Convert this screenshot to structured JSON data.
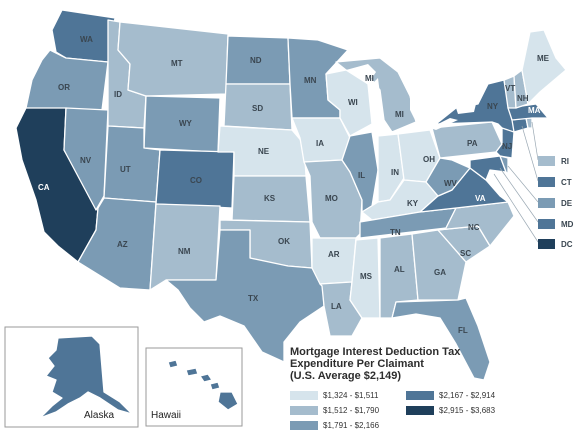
{
  "map": {
    "title_lines": [
      "Mortgage Interest Deduction Tax",
      "Expenditure Per Claimant",
      "(U.S. Average $2,149)"
    ],
    "classes": [
      {
        "range": "$1,324 - $1,511",
        "color": "#d6e4ec"
      },
      {
        "range": "$1,512 - $1,790",
        "color": "#a5bccd"
      },
      {
        "range": "$1,791 - $2,166",
        "color": "#7b9bb4"
      },
      {
        "range": "$2,167 - $2,914",
        "color": "#4f7597"
      },
      {
        "range": "$2,915 - $3,683",
        "color": "#1f3f5b"
      }
    ],
    "state_labels": {
      "WA": "WA",
      "OR": "OR",
      "CA": "CA",
      "NV": "NV",
      "ID": "ID",
      "MT": "MT",
      "WY": "WY",
      "UT": "UT",
      "AZ": "AZ",
      "CO": "CO",
      "NM": "NM",
      "ND": "ND",
      "SD": "SD",
      "NE": "NE",
      "KS": "KS",
      "OK": "OK",
      "TX": "TX",
      "MN": "MN",
      "IA": "IA",
      "MO": "MO",
      "AR": "AR",
      "LA": "LA",
      "WI": "WI",
      "IL": "IL",
      "MS": "MS",
      "MI": "MI",
      "IN": "IN",
      "OH": "OH",
      "KY": "KY",
      "TN": "TN",
      "AL": "AL",
      "GA": "GA",
      "FL": "FL",
      "SC": "SC",
      "NC": "NC",
      "VA": "VA",
      "WV": "WV",
      "PA": "PA",
      "NY": "NY",
      "ME": "ME",
      "VT": "VT",
      "NH": "NH",
      "NJ": "NJ",
      "MA": "MA"
    },
    "ne_legend": [
      {
        "label": "RI",
        "class": 1
      },
      {
        "label": "CT",
        "class": 3
      },
      {
        "label": "DE",
        "class": 2
      },
      {
        "label": "MD",
        "class": 3
      },
      {
        "label": "DC",
        "class": 4
      }
    ],
    "insets": {
      "alaska": "Alaska",
      "hawaii": "Hawaii"
    }
  }
}
